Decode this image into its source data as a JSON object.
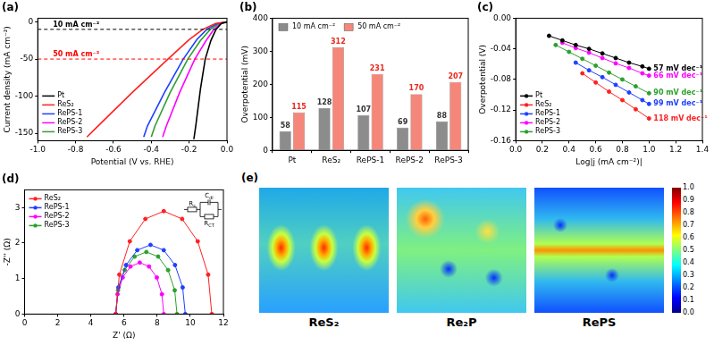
{
  "chart_data": [
    {
      "panel": "(a)",
      "type": "line",
      "x_label": "Potential (V vs. RHE)",
      "y_label": "Current density (mA cm⁻²)",
      "xlim": [
        -1.0,
        0.0
      ],
      "xticks": [
        {
          "value": -1.0,
          "label": "-1.0"
        },
        {
          "value": -0.8,
          "label": "-0.8"
        },
        {
          "value": -0.6,
          "label": "-0.6"
        },
        {
          "value": -0.4,
          "label": "-0.4"
        },
        {
          "value": -0.2,
          "label": "-0.2"
        },
        {
          "value": 0,
          "label": "0.0"
        }
      ],
      "ylim": [
        -160,
        5
      ],
      "yticks": [
        -150,
        -100,
        -50,
        0
      ],
      "grid": false,
      "legend": "lower left",
      "line_style": "solid",
      "marker": "none",
      "reference_lines": [
        {
          "value": -10,
          "label": "10 mA cm⁻²",
          "color": "#000000"
        },
        {
          "value": -50,
          "label": "50 mA cm⁻²",
          "color": "#ff0000"
        }
      ],
      "series": [
        {
          "name": "Pt",
          "color": "#000000",
          "x": [
            0,
            -0.03,
            -0.058,
            -0.085,
            -0.115,
            -0.14,
            -0.165,
            -0.175
          ],
          "values": [
            0,
            -2,
            -10,
            -25,
            -50,
            -90,
            -140,
            -158
          ]
        },
        {
          "name": "ReS₂",
          "color": "#ff2020",
          "x": [
            0,
            -0.06,
            -0.128,
            -0.2,
            -0.312,
            -0.5,
            -0.7,
            -0.74
          ],
          "values": [
            0,
            -2,
            -10,
            -24,
            -50,
            -95,
            -145,
            -155
          ]
        },
        {
          "name": "RePS-1",
          "color": "#1f3fff",
          "x": [
            0,
            -0.05,
            -0.107,
            -0.16,
            -0.231,
            -0.33,
            -0.42,
            -0.44
          ],
          "values": [
            0,
            -2,
            -10,
            -24,
            -50,
            -95,
            -140,
            -155
          ]
        },
        {
          "name": "RePS-2",
          "color": "#ff00ff",
          "x": [
            0,
            -0.03,
            -0.069,
            -0.11,
            -0.17,
            -0.25,
            -0.32,
            -0.34
          ],
          "values": [
            0,
            -2,
            -10,
            -25,
            -50,
            -95,
            -140,
            -155
          ]
        },
        {
          "name": "RePS-3",
          "color": "#2ca02c",
          "x": [
            0,
            -0.04,
            -0.088,
            -0.14,
            -0.207,
            -0.3,
            -0.38,
            -0.4
          ],
          "values": [
            0,
            -2,
            -10,
            -25,
            -50,
            -95,
            -140,
            -155
          ]
        }
      ]
    },
    {
      "panel": "(b)",
      "type": "bar",
      "y_label": "Overpotential (mV)",
      "categories": [
        "Pt",
        "ReS₂",
        "RePS-1",
        "RePS-2",
        "RePS-3"
      ],
      "ylim": [
        0,
        400
      ],
      "yticks": [
        0,
        100,
        200,
        300,
        400
      ],
      "grid": false,
      "legend": "upper left",
      "data_labels": true,
      "series": [
        {
          "name": "10 mA cm⁻²",
          "color": "#8c8c8c",
          "values": [
            58,
            128,
            107,
            69,
            88
          ]
        },
        {
          "name": "50 mA cm⁻²",
          "color": "#f4877a",
          "values": [
            115,
            312,
            231,
            170,
            207
          ]
        }
      ]
    },
    {
      "panel": "(c)",
      "type": "line",
      "x_label": "Log|j (mA cm⁻²)|",
      "y_label": "Overpotential (V)",
      "xlim": [
        0.0,
        1.4
      ],
      "xticks": [
        {
          "value": 0,
          "label": "0.0"
        },
        {
          "value": 0.2,
          "label": "0.2"
        },
        {
          "value": 0.4,
          "label": "0.4"
        },
        {
          "value": 0.6,
          "label": "0.6"
        },
        {
          "value": 0.8,
          "label": "0.8"
        },
        {
          "value": 1.0,
          "label": "1.0"
        },
        {
          "value": 1.2,
          "label": "1.2"
        },
        {
          "value": 1.4,
          "label": "1.4"
        }
      ],
      "ylim": [
        -0.16,
        0.0
      ],
      "yticks": [
        {
          "value": -0.16,
          "label": "-0.16"
        },
        {
          "value": -0.12,
          "label": "-0.12"
        },
        {
          "value": -0.08,
          "label": "-0.08"
        },
        {
          "value": -0.04,
          "label": "-0.04"
        },
        {
          "value": 0,
          "label": "0.00"
        }
      ],
      "grid": false,
      "legend": "lower left",
      "line_style": "solid",
      "marker": "circle",
      "series": [
        {
          "name": "Pt",
          "color": "#000000",
          "annotation": "57 mV dec⁻¹",
          "x": [
            0.25,
            0.35,
            0.45,
            0.55,
            0.65,
            0.75,
            0.85,
            0.95,
            1.0
          ],
          "values": [
            -0.023,
            -0.029,
            -0.035,
            -0.04,
            -0.046,
            -0.052,
            -0.058,
            -0.063,
            -0.066
          ]
        },
        {
          "name": "ReS₂",
          "color": "#ff2020",
          "annotation": "118 mV dec⁻¹",
          "x": [
            0.5,
            0.6,
            0.7,
            0.8,
            0.9,
            1.0
          ],
          "values": [
            -0.072,
            -0.084,
            -0.096,
            -0.107,
            -0.119,
            -0.131
          ]
        },
        {
          "name": "RePS-1",
          "color": "#1f3fff",
          "annotation": "99 mV dec⁻¹",
          "x": [
            0.45,
            0.55,
            0.65,
            0.75,
            0.85,
            0.95,
            1.0
          ],
          "values": [
            -0.058,
            -0.068,
            -0.077,
            -0.087,
            -0.097,
            -0.107,
            -0.112
          ]
        },
        {
          "name": "RePS-2",
          "color": "#ff00ff",
          "annotation": "66 mV dec⁻¹",
          "x": [
            0.35,
            0.45,
            0.55,
            0.65,
            0.75,
            0.85,
            0.95,
            1.0
          ],
          "values": [
            -0.032,
            -0.039,
            -0.045,
            -0.052,
            -0.059,
            -0.065,
            -0.072,
            -0.075
          ]
        },
        {
          "name": "RePS-3",
          "color": "#2ca02c",
          "annotation": "90 mV dec⁻¹",
          "x": [
            0.3,
            0.4,
            0.5,
            0.6,
            0.7,
            0.8,
            0.9,
            1.0
          ],
          "values": [
            -0.035,
            -0.044,
            -0.053,
            -0.062,
            -0.071,
            -0.08,
            -0.089,
            -0.098
          ]
        }
      ]
    },
    {
      "panel": "(d)",
      "type": "line",
      "x_label": "Z' (Ω)",
      "y_label": "-Z'' (Ω)",
      "xlim": [
        0,
        12
      ],
      "xticks": [
        0,
        2,
        4,
        6,
        8,
        10,
        12
      ],
      "ylim": [
        0,
        3.5
      ],
      "yticks": [
        0,
        1,
        2,
        3
      ],
      "grid": false,
      "legend": "upper left",
      "line_style": "solid",
      "marker": "circle",
      "circuit_labels": [
        "Rs",
        "Cdl",
        "RCT"
      ],
      "series": [
        {
          "name": "ReS₂",
          "color": "#ff2020",
          "x": [
            5.5,
            5.72,
            6.35,
            7.29,
            8.4,
            9.51,
            10.45,
            11.08,
            11.3
          ],
          "values": [
            0,
            1.11,
            2.05,
            2.68,
            2.9,
            2.68,
            2.05,
            1.11,
            0
          ]
        },
        {
          "name": "RePS-1",
          "color": "#1f3fff",
          "x": [
            5.5,
            5.66,
            6.12,
            6.8,
            7.6,
            8.4,
            9.08,
            9.54,
            9.7
          ],
          "values": [
            0,
            0.75,
            1.38,
            1.8,
            1.95,
            1.8,
            1.38,
            0.75,
            0
          ]
        },
        {
          "name": "RePS-2",
          "color": "#ff00ff",
          "x": [
            5.5,
            5.61,
            5.92,
            6.39,
            6.95,
            7.51,
            7.98,
            8.29,
            8.4
          ],
          "values": [
            0,
            0.56,
            1.03,
            1.34,
            1.45,
            1.34,
            1.03,
            0.56,
            0
          ]
        },
        {
          "name": "RePS-3",
          "color": "#2ca02c",
          "x": [
            5.5,
            5.64,
            6.04,
            6.64,
            7.35,
            8.06,
            8.66,
            9.06,
            9.2
          ],
          "values": [
            0,
            0.67,
            1.24,
            1.62,
            1.75,
            1.62,
            1.24,
            0.67,
            0
          ]
        }
      ]
    },
    {
      "panel": "(e)",
      "type": "image",
      "panels": [
        "ReS₂",
        "Re₂P",
        "RePS"
      ],
      "colorbar": {
        "range": [
          0,
          1
        ],
        "ticks": [
          {
            "value": 0,
            "label": "0.0"
          },
          {
            "value": 0.1,
            "label": "0.1"
          },
          {
            "value": 0.2,
            "label": "0.2"
          },
          {
            "value": 0.3,
            "label": "0.3"
          },
          {
            "value": 0.4,
            "label": "0.4"
          },
          {
            "value": 0.5,
            "label": "0.5"
          },
          {
            "value": 0.6,
            "label": "0.6"
          },
          {
            "value": 0.7,
            "label": "0.7"
          },
          {
            "value": 0.8,
            "label": "0.8"
          },
          {
            "value": 0.9,
            "label": "0.9"
          },
          {
            "value": 1,
            "label": "1.0"
          }
        ]
      }
    }
  ]
}
